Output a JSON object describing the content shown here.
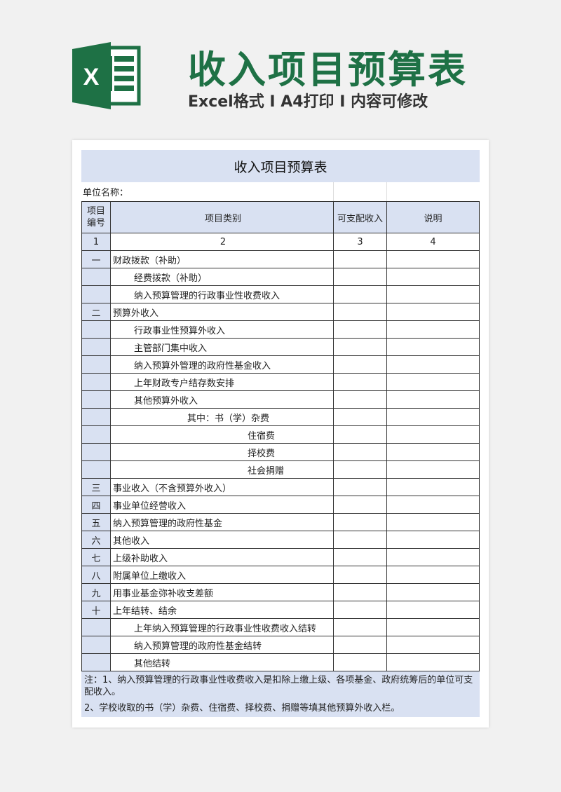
{
  "banner": {
    "logo_letter": "X",
    "title": "收入项目预算表",
    "subtitle": "Excel格式 I A4打印 I 内容可修改",
    "color": "#1e7145"
  },
  "sheet": {
    "title": "收入项目预算表",
    "unit_label": "单位名称：",
    "headers": [
      "项目编号",
      "项目类别",
      "可支配收入",
      "说明"
    ],
    "index_row": [
      "1",
      "2",
      "3",
      "4"
    ],
    "rows": [
      {
        "no": "一",
        "item": "财政拨款（补助）",
        "level": 0
      },
      {
        "no": "",
        "item": "经费拨款（补助）",
        "level": 1
      },
      {
        "no": "",
        "item": "纳入预算管理的行政事业性收费收入",
        "level": 1
      },
      {
        "no": "二",
        "item": "预算外收入",
        "level": 0
      },
      {
        "no": "",
        "item": "行政事业性预算外收入",
        "level": 1
      },
      {
        "no": "",
        "item": "主管部门集中收入",
        "level": 1
      },
      {
        "no": "",
        "item": "纳入预算外管理的政府性基金收入",
        "level": 1
      },
      {
        "no": "",
        "item": "上年财政专户结存数安排",
        "level": 1
      },
      {
        "no": "",
        "item": "其他预算外收入",
        "level": 1
      },
      {
        "no": "",
        "item": "其中：书（学）杂费",
        "level": 2
      },
      {
        "no": "",
        "item": "住宿费",
        "level": 3
      },
      {
        "no": "",
        "item": "择校费",
        "level": 3
      },
      {
        "no": "",
        "item": "社会捐赠",
        "level": 3
      },
      {
        "no": "三",
        "item": "事业收入（不含预算外收入）",
        "level": 0
      },
      {
        "no": "四",
        "item": "事业单位经营收入",
        "level": 0
      },
      {
        "no": "五",
        "item": "纳入预算管理的政府性基金",
        "level": 0
      },
      {
        "no": "六",
        "item": "其他收入",
        "level": 0
      },
      {
        "no": "七",
        "item": "上级补助收入",
        "level": 0
      },
      {
        "no": "八",
        "item": "附属单位上缴收入",
        "level": 0
      },
      {
        "no": "九",
        "item": "用事业基金弥补收支差额",
        "level": 0
      },
      {
        "no": "十",
        "item": "上年结转、结余",
        "level": 0
      },
      {
        "no": "",
        "item": "上年纳入预算管理的行政事业性收费收入结转",
        "level": 1
      },
      {
        "no": "",
        "item": "纳入预算管理的政府性基金结转",
        "level": 1
      },
      {
        "no": "",
        "item": "其他结转",
        "level": 1
      }
    ],
    "notes": [
      "注：1、纳入预算管理的行政事业性收费收入是扣除上缴上级、各项基金、政府统筹后的单位可支配收入。",
      "2、学校收取的书（学）杂费、住宿费、择校费、捐赠等填其他预算外收入栏。"
    ]
  }
}
